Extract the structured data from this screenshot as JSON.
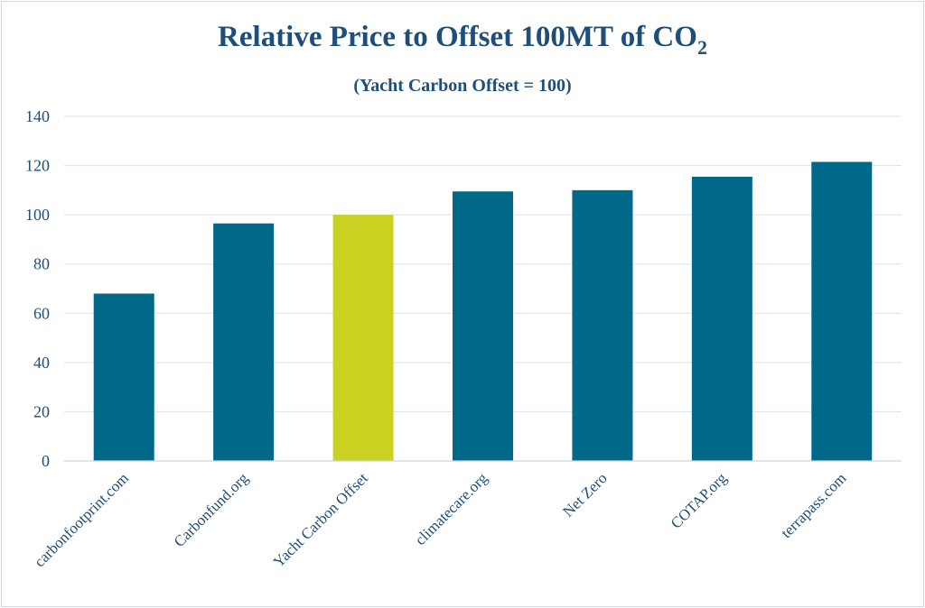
{
  "chart_data": {
    "type": "bar",
    "title_main": "Relative Price to Offset 100MT of CO",
    "title_subscript": "2",
    "subtitle": "(Yacht Carbon Offset = 100)",
    "xlabel": "",
    "ylabel": "",
    "categories": [
      "carbonfootprint.com",
      "Carbonfund.org",
      "Yacht Carbon Offset",
      "climatecare.org",
      "Net Zero",
      "COTAP.org",
      "terrapass.com"
    ],
    "values": [
      68,
      96.5,
      100,
      109.5,
      110,
      115.5,
      121.5
    ],
    "ylim": [
      0,
      140
    ],
    "yticks": [
      0,
      20,
      40,
      60,
      80,
      100,
      120,
      140
    ],
    "grid": true,
    "legend": "none",
    "colors": {
      "bar": "#006888",
      "highlight": "#cad121",
      "text": "#1f4e79"
    },
    "highlight_category": "Yacht Carbon Offset"
  }
}
